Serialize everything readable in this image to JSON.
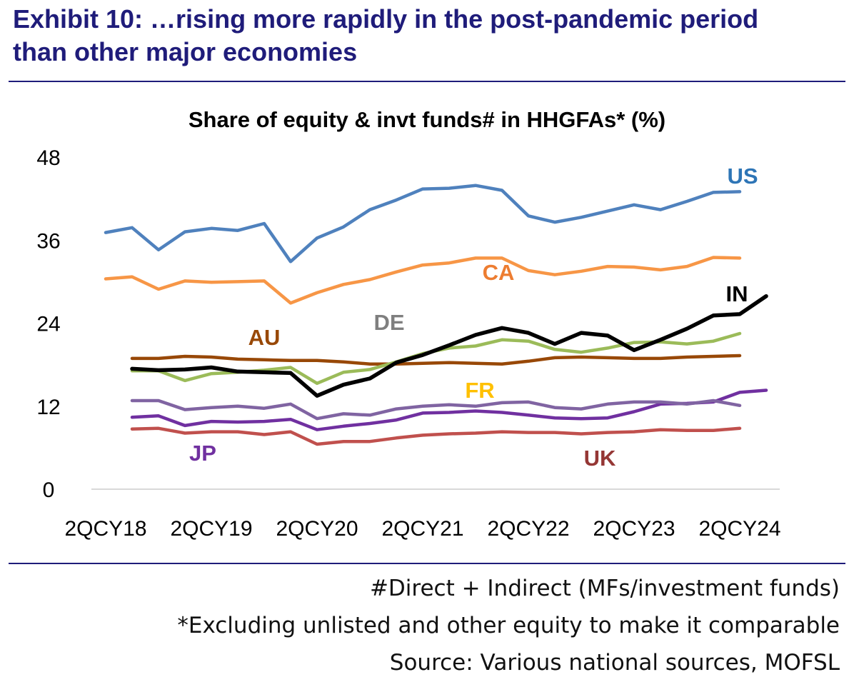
{
  "exhibit": {
    "title_line1": "Exhibit 10: …rising more rapidly in the post-pandemic period",
    "title_line2": "than other major economies"
  },
  "chart_data": {
    "type": "line",
    "title": "Share of equity & invt funds# in HHGFAs* (%)",
    "xlabel": "",
    "ylabel": "",
    "ylim": [
      0,
      48
    ],
    "yticks": [
      0,
      12,
      24,
      36,
      48
    ],
    "xticks": [
      "2QCY18",
      "2QCY19",
      "2QCY20",
      "2QCY21",
      "2QCY22",
      "2QCY23",
      "2QCY24"
    ],
    "grid": false,
    "x": [
      "2QCY18",
      "3QCY18",
      "4QCY18",
      "1QCY19",
      "2QCY19",
      "3QCY19",
      "4QCY19",
      "1QCY20",
      "2QCY20",
      "3QCY20",
      "4QCY20",
      "1QCY21",
      "2QCY21",
      "3QCY21",
      "4QCY21",
      "1QCY22",
      "2QCY22",
      "3QCY22",
      "4QCY22",
      "1QCY23",
      "2QCY23",
      "3QCY23",
      "4QCY23",
      "1QCY24",
      "2QCY24",
      "3QCY24"
    ],
    "series": [
      {
        "name": "US",
        "color": "#4f81bd",
        "values": [
          37.1,
          37.8,
          34.6,
          37.2,
          37.7,
          37.4,
          38.4,
          32.9,
          36.3,
          37.9,
          40.4,
          41.8,
          43.4,
          43.5,
          43.9,
          43.2,
          39.5,
          38.6,
          39.3,
          40.2,
          41.1,
          40.4,
          41.6,
          42.9,
          43.0,
          null
        ]
      },
      {
        "name": "CA",
        "color": "#f79646",
        "values": [
          30.4,
          30.7,
          28.9,
          30.1,
          29.9,
          30.0,
          30.1,
          26.9,
          28.4,
          29.6,
          30.3,
          31.4,
          32.4,
          32.7,
          33.4,
          33.4,
          31.6,
          31.0,
          31.5,
          32.2,
          32.1,
          31.7,
          32.2,
          33.5,
          33.4,
          null
        ]
      },
      {
        "name": "IN",
        "color": "#000000",
        "values": [
          null,
          17.4,
          17.2,
          17.3,
          17.6,
          17.0,
          16.9,
          16.8,
          13.5,
          15.1,
          16.0,
          18.3,
          19.4,
          20.8,
          22.3,
          23.3,
          22.6,
          21.0,
          22.6,
          22.2,
          20.1,
          21.6,
          23.2,
          25.1,
          25.3,
          27.9
        ]
      },
      {
        "name": "DE",
        "color": "#9bbb59",
        "values": [
          null,
          17.1,
          17.1,
          15.7,
          16.7,
          16.9,
          17.2,
          17.6,
          15.3,
          16.9,
          17.3,
          18.4,
          19.6,
          20.4,
          20.7,
          21.6,
          21.4,
          20.2,
          19.8,
          20.4,
          21.2,
          21.3,
          21.0,
          21.4,
          22.5,
          null
        ]
      },
      {
        "name": "AU",
        "color": "#984807",
        "values": [
          null,
          18.9,
          18.9,
          19.2,
          19.1,
          18.8,
          18.7,
          18.6,
          18.6,
          18.4,
          18.1,
          18.1,
          18.2,
          18.3,
          18.2,
          18.1,
          18.5,
          19.0,
          19.1,
          19.0,
          18.9,
          18.9,
          19.1,
          19.2,
          19.3,
          null
        ]
      },
      {
        "name": "FR",
        "color": "#8064a2",
        "values": [
          null,
          12.8,
          12.8,
          11.5,
          11.8,
          12.0,
          11.7,
          12.3,
          10.2,
          10.9,
          10.7,
          11.6,
          12.0,
          12.2,
          12.0,
          12.5,
          12.6,
          11.8,
          11.6,
          12.3,
          12.6,
          12.6,
          12.3,
          12.8,
          12.1,
          null
        ]
      },
      {
        "name": "JP",
        "color": "#7030a0",
        "values": [
          null,
          10.4,
          10.6,
          9.2,
          9.8,
          9.7,
          9.8,
          10.1,
          8.6,
          9.1,
          9.5,
          10.0,
          11.0,
          11.1,
          11.3,
          11.1,
          10.7,
          10.3,
          10.2,
          10.3,
          11.2,
          12.3,
          12.4,
          12.6,
          14.0,
          14.3
        ]
      },
      {
        "name": "UK",
        "color": "#c0504d",
        "values": [
          null,
          8.7,
          8.8,
          8.1,
          8.3,
          8.3,
          7.9,
          8.3,
          6.5,
          6.9,
          6.9,
          7.4,
          7.8,
          8.0,
          8.1,
          8.3,
          8.2,
          8.2,
          8.0,
          8.2,
          8.3,
          8.6,
          8.5,
          8.5,
          8.8,
          null
        ]
      }
    ],
    "series_labels": [
      {
        "name": "US",
        "color": "#2e75b6"
      },
      {
        "name": "CA",
        "color": "#ed7d31"
      },
      {
        "name": "IN",
        "color": "#000000"
      },
      {
        "name": "DE",
        "color": "#7f7f7f"
      },
      {
        "name": "AU",
        "color": "#984807"
      },
      {
        "name": "FR",
        "color": "#ffc000"
      },
      {
        "name": "JP",
        "color": "#7030a0"
      },
      {
        "name": "UK",
        "color": "#953735"
      }
    ]
  },
  "notes": {
    "line1": "#Direct + Indirect (MFs/investment funds)",
    "line2": "*Excluding unlisted and other equity to make it comparable",
    "line3": "Source: Various national sources, MOFSL"
  }
}
